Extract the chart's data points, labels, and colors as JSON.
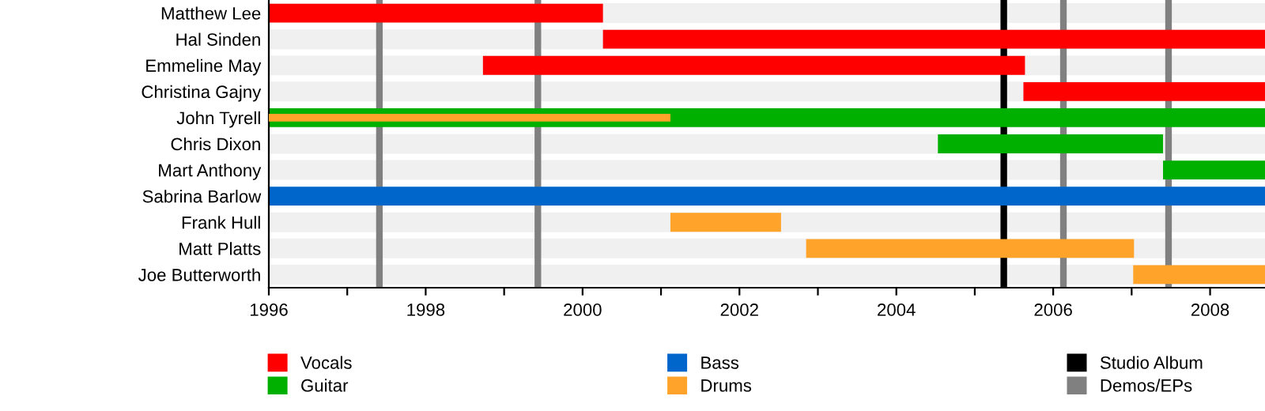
{
  "chart_data": {
    "type": "bar",
    "orientation": "horizontal",
    "categories": [
      "Matthew Lee",
      "Hal Sinden",
      "Emmeline May",
      "Christina Gajny",
      "John Tyrell",
      "Chris Dixon",
      "Mart Anthony",
      "Sabrina Barlow",
      "Frank Hull",
      "Matt Platts",
      "Joe Butterworth"
    ],
    "series": [
      {
        "name": "Vocals",
        "color": "#ff0000",
        "base": [
          1996,
          2000.26,
          1998.73,
          2005.62,
          null,
          null,
          null,
          null,
          null,
          null,
          null
        ],
        "values": [
          4.26,
          8.44,
          6.91,
          3.08,
          null,
          null,
          null,
          null,
          null,
          null,
          null
        ]
      },
      {
        "name": "Guitar",
        "color": "#00b000",
        "base": [
          null,
          null,
          null,
          null,
          1996,
          2004.53,
          2007.4,
          null,
          null,
          null,
          null
        ],
        "values": [
          null,
          null,
          null,
          null,
          12.7,
          2.87,
          1.3,
          null,
          null,
          null,
          null
        ]
      },
      {
        "name": "Bass",
        "color": "#0066cc",
        "base": [
          null,
          null,
          null,
          null,
          null,
          null,
          null,
          1996,
          null,
          null,
          null
        ],
        "values": [
          null,
          null,
          null,
          null,
          null,
          null,
          null,
          12.7,
          null,
          null,
          null
        ]
      },
      {
        "name": "Drums",
        "color": "#ffa32a",
        "base": [
          null,
          null,
          null,
          null,
          1996,
          null,
          null,
          null,
          2001.12,
          2002.85,
          2007.02
        ],
        "values": [
          null,
          null,
          null,
          null,
          5.12,
          null,
          null,
          null,
          1.41,
          4.18,
          1.68
        ]
      }
    ],
    "ref_lines": [
      {
        "axis": "x",
        "value": 1997.41,
        "label": "Demos/EPs",
        "color": "#808080"
      },
      {
        "axis": "x",
        "value": 1999.43,
        "color": "#808080"
      },
      {
        "axis": "x",
        "value": 2005.37,
        "label": "Studio Album",
        "color": "#000000"
      },
      {
        "axis": "x",
        "value": 2006.13,
        "color": "#808080"
      },
      {
        "axis": "x",
        "value": 2007.47,
        "color": "#808080"
      }
    ],
    "xlim": [
      1996,
      2008.7
    ],
    "xticks": [
      1996,
      {
        "value": 1997,
        "label": null
      },
      1998,
      {
        "value": 1999,
        "label": null
      },
      2000,
      {
        "value": 2001,
        "label": null
      },
      2002,
      {
        "value": 2003,
        "label": null
      },
      2004,
      {
        "value": 2005,
        "label": null
      },
      2006,
      {
        "value": 2007,
        "label": null
      },
      2008
    ],
    "grid": "y",
    "legend": "bottom"
  }
}
